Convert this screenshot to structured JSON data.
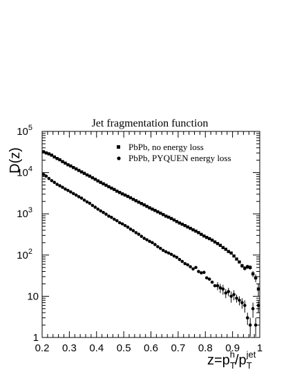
{
  "chart_data": {
    "type": "scatter",
    "title": "Jet fragmentation function",
    "ylabel": "D(z)",
    "xlabel": {
      "base": "z=p",
      "sub1": "T",
      "sup1": "h",
      "sep": "/p",
      "sub2": "T",
      "sup2": "jet"
    },
    "xlim": [
      0.2,
      1.0
    ],
    "ylim": [
      1,
      100000
    ],
    "yscale": "log",
    "grid": false,
    "legend_position": "top-right",
    "x_ticks": [
      "0.2",
      "0.3",
      "0.4",
      "0.5",
      "0.6",
      "0.7",
      "0.8",
      "0.9",
      "1"
    ],
    "y_ticks": [
      {
        "base": "1",
        "exp": ""
      },
      {
        "base": "10",
        "exp": ""
      },
      {
        "base": "10",
        "exp": "2"
      },
      {
        "base": "10",
        "exp": "3"
      },
      {
        "base": "10",
        "exp": "4"
      },
      {
        "base": "10",
        "exp": "5"
      }
    ],
    "series": [
      {
        "name": "PbPb, no energy loss",
        "marker": "square",
        "x": [
          0.205,
          0.215,
          0.225,
          0.235,
          0.245,
          0.255,
          0.265,
          0.275,
          0.285,
          0.295,
          0.305,
          0.315,
          0.325,
          0.335,
          0.345,
          0.355,
          0.365,
          0.375,
          0.385,
          0.395,
          0.405,
          0.415,
          0.425,
          0.435,
          0.445,
          0.455,
          0.465,
          0.475,
          0.485,
          0.495,
          0.505,
          0.515,
          0.525,
          0.535,
          0.545,
          0.555,
          0.565,
          0.575,
          0.585,
          0.595,
          0.605,
          0.615,
          0.625,
          0.635,
          0.645,
          0.655,
          0.665,
          0.675,
          0.685,
          0.695,
          0.705,
          0.715,
          0.725,
          0.735,
          0.745,
          0.755,
          0.765,
          0.775,
          0.785,
          0.795,
          0.805,
          0.815,
          0.825,
          0.835,
          0.845,
          0.855,
          0.865,
          0.875,
          0.885,
          0.895,
          0.905,
          0.915,
          0.925,
          0.935,
          0.945,
          0.955,
          0.965,
          0.975,
          0.985,
          0.995
        ],
        "y": [
          32000,
          30000,
          28500,
          26500,
          24000,
          22000,
          20500,
          18500,
          17000,
          15500,
          14500,
          13300,
          12300,
          11300,
          10400,
          9600,
          8800,
          8200,
          7500,
          6900,
          6300,
          5800,
          5350,
          4950,
          4550,
          4200,
          3900,
          3550,
          3300,
          3050,
          2850,
          2650,
          2450,
          2250,
          2080,
          1920,
          1780,
          1650,
          1520,
          1400,
          1300,
          1210,
          1120,
          1040,
          960,
          880,
          830,
          770,
          710,
          650,
          600,
          560,
          520,
          480,
          445,
          410,
          380,
          350,
          318,
          290,
          268,
          250,
          230,
          208,
          190,
          172,
          152,
          138,
          122,
          112,
          95,
          80,
          68,
          55,
          48,
          52,
          50,
          35,
          28,
          15
        ],
        "yerr": [
          0,
          0,
          0,
          0,
          0,
          0,
          0,
          0,
          0,
          0,
          0,
          0,
          0,
          0,
          0,
          0,
          0,
          0,
          0,
          0,
          0,
          0,
          0,
          0,
          0,
          0,
          0,
          0,
          0,
          0,
          0,
          0,
          0,
          0,
          0,
          0,
          0,
          0,
          0,
          0,
          0,
          0,
          0,
          0,
          0,
          0,
          0,
          0,
          0,
          0,
          0,
          0,
          0,
          0,
          0,
          0,
          0,
          0,
          0,
          0,
          0,
          0,
          0,
          0,
          0,
          0,
          0,
          0,
          5,
          5,
          5,
          5,
          5,
          6,
          6,
          6,
          6,
          6,
          6,
          5
        ]
      },
      {
        "name": "PbPb, PYQUEN energy loss",
        "marker": "circle",
        "x": [
          0.205,
          0.215,
          0.225,
          0.235,
          0.245,
          0.255,
          0.265,
          0.275,
          0.285,
          0.295,
          0.305,
          0.315,
          0.325,
          0.335,
          0.345,
          0.355,
          0.365,
          0.375,
          0.385,
          0.395,
          0.405,
          0.415,
          0.425,
          0.435,
          0.445,
          0.455,
          0.465,
          0.475,
          0.485,
          0.495,
          0.505,
          0.515,
          0.525,
          0.535,
          0.545,
          0.555,
          0.565,
          0.575,
          0.585,
          0.595,
          0.605,
          0.615,
          0.625,
          0.635,
          0.645,
          0.655,
          0.665,
          0.675,
          0.685,
          0.695,
          0.705,
          0.715,
          0.725,
          0.735,
          0.745,
          0.755,
          0.765,
          0.775,
          0.785,
          0.795,
          0.805,
          0.815,
          0.825,
          0.835,
          0.845,
          0.855,
          0.865,
          0.875,
          0.885,
          0.895,
          0.905,
          0.915,
          0.925,
          0.935,
          0.945,
          0.955,
          0.965,
          0.975,
          0.985,
          0.995
        ],
        "y": [
          9000,
          8200,
          7200,
          6400,
          5800,
          5200,
          4800,
          4400,
          4000,
          3700,
          3400,
          3100,
          2850,
          2600,
          2400,
          2150,
          1950,
          1800,
          1600,
          1450,
          1300,
          1180,
          1080,
          980,
          880,
          820,
          740,
          680,
          610,
          570,
          520,
          475,
          425,
          390,
          350,
          320,
          285,
          255,
          235,
          215,
          200,
          180,
          160,
          145,
          130,
          120,
          112,
          104,
          95,
          88,
          78,
          70,
          62,
          58,
          52,
          46,
          50,
          40,
          37,
          38,
          28,
          26,
          22,
          18,
          18,
          16,
          15,
          12,
          13,
          10,
          11,
          9,
          8,
          7,
          6,
          3,
          2,
          5,
          2,
          6
        ],
        "yerr": [
          0,
          0,
          0,
          0,
          0,
          0,
          0,
          0,
          0,
          0,
          0,
          0,
          0,
          0,
          0,
          0,
          0,
          0,
          0,
          0,
          0,
          0,
          0,
          0,
          0,
          0,
          0,
          0,
          0,
          0,
          0,
          0,
          0,
          0,
          0,
          0,
          0,
          0,
          0,
          0,
          0,
          0,
          0,
          0,
          0,
          0,
          0,
          0,
          0,
          0,
          0,
          0,
          0,
          0,
          0,
          0,
          0,
          0,
          0,
          0,
          0,
          0,
          0,
          0,
          4,
          4,
          4,
          3,
          3,
          3,
          3,
          2,
          2,
          2,
          2,
          1,
          1,
          2,
          1,
          2
        ]
      }
    ]
  }
}
